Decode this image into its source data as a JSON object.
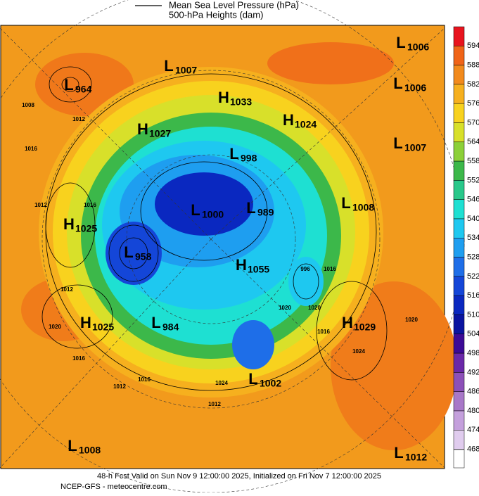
{
  "header": {
    "lines": [
      "Mean Sea Level Pressure (hPa)",
      "500-hPa Heights (dam)"
    ]
  },
  "colorbar": {
    "levels": [
      {
        "label": "594",
        "color": "#e8141e"
      },
      {
        "label": "588",
        "color": "#f06418"
      },
      {
        "label": "582",
        "color": "#f28a1c"
      },
      {
        "label": "576",
        "color": "#f6b01e"
      },
      {
        "label": "570",
        "color": "#f8d21e"
      },
      {
        "label": "564",
        "color": "#d8e02a"
      },
      {
        "label": "558",
        "color": "#8cd038"
      },
      {
        "label": "552",
        "color": "#3cb84a"
      },
      {
        "label": "546",
        "color": "#28c88a"
      },
      {
        "label": "540",
        "color": "#1ee0d2"
      },
      {
        "label": "534",
        "color": "#1ec8f0"
      },
      {
        "label": "528",
        "color": "#1e9ef0"
      },
      {
        "label": "522",
        "color": "#1e6ee8"
      },
      {
        "label": "516",
        "color": "#1446d8"
      },
      {
        "label": "510",
        "color": "#0a28c0"
      },
      {
        "label": "504",
        "color": "#0a14a0"
      },
      {
        "label": "498",
        "color": "#3c0a96"
      },
      {
        "label": "492",
        "color": "#6a28a8"
      },
      {
        "label": "486",
        "color": "#8c50b8"
      },
      {
        "label": "480",
        "color": "#a878c8"
      },
      {
        "label": "474",
        "color": "#c4a0dc"
      },
      {
        "label": "468",
        "color": "#e0ccee"
      }
    ]
  },
  "centers": [
    {
      "type": "L",
      "value": "1006"
    },
    {
      "type": "L",
      "value": "1006"
    },
    {
      "type": "L",
      "value": "1007"
    },
    {
      "type": "L",
      "value": "1007"
    },
    {
      "type": "H",
      "value": "1033"
    },
    {
      "type": "H",
      "value": "1024"
    },
    {
      "type": "H",
      "value": "1027"
    },
    {
      "type": "L",
      "value": "998"
    },
    {
      "type": "L",
      "value": "964"
    },
    {
      "type": "L",
      "value": "1000"
    },
    {
      "type": "L",
      "value": "989"
    },
    {
      "type": "L",
      "value": "1008"
    },
    {
      "type": "H",
      "value": "1025"
    },
    {
      "type": "L",
      "value": "958"
    },
    {
      "type": "H",
      "value": "1055"
    },
    {
      "type": "H",
      "value": "1025"
    },
    {
      "type": "L",
      "value": "984"
    },
    {
      "type": "H",
      "value": "1029"
    },
    {
      "type": "L",
      "value": "1002"
    },
    {
      "type": "L",
      "value": "1008"
    },
    {
      "type": "L",
      "value": "1012"
    }
  ],
  "contour_labels": [
    "1008",
    "1012",
    "1016",
    "1012",
    "1016",
    "1012",
    "1020",
    "1016",
    "1012",
    "1016",
    "1024",
    "1020",
    "1016",
    "1012",
    "996",
    "1020",
    "1016",
    "1024",
    "1020"
  ],
  "footer": {
    "lines": [
      "48-h Fcst Valid on Sun Nov  9 12:00:00 2025, Initialized on Fri Nov  7 12:00:00 2025",
      "NCEP-GFS  - meteocentre.com"
    ]
  }
}
